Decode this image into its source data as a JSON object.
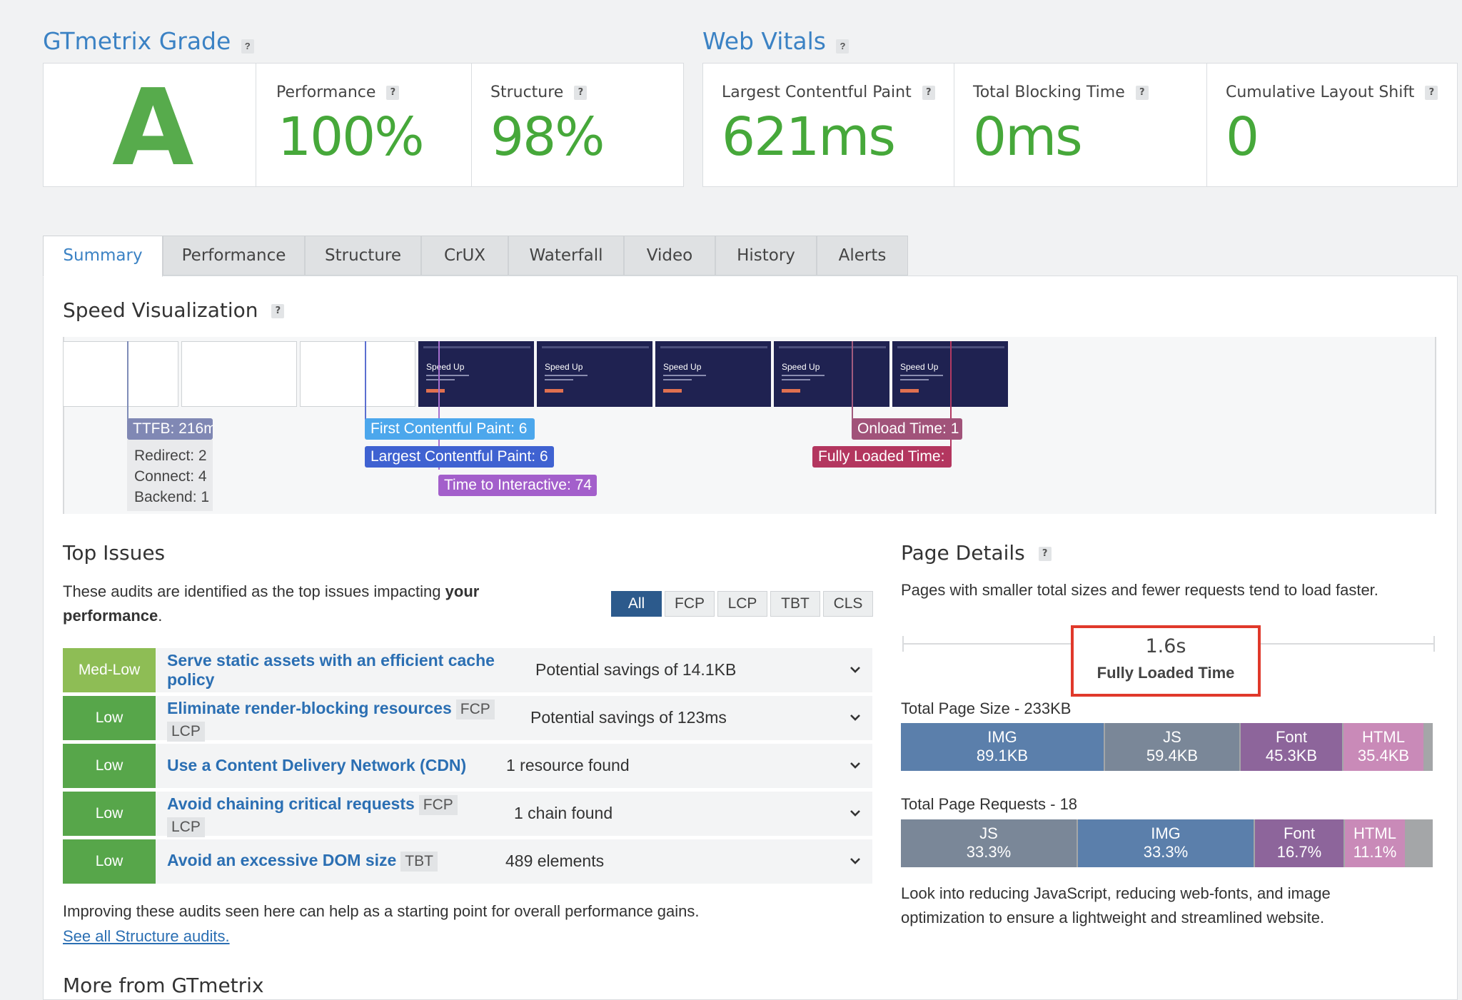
{
  "grade": {
    "title": "GTmetrix Grade",
    "help": "?",
    "letter": "A",
    "performance": {
      "label": "Performance",
      "value": "100%"
    },
    "structure": {
      "label": "Structure",
      "value": "98%"
    }
  },
  "vitals": {
    "title": "Web Vitals",
    "help": "?",
    "lcp": {
      "label": "Largest Contentful Paint",
      "value": "621ms"
    },
    "tbt": {
      "label": "Total Blocking Time",
      "value": "0ms"
    },
    "cls": {
      "label": "Cumulative Layout Shift",
      "value": "0"
    }
  },
  "tabs": [
    "Summary",
    "Performance",
    "Structure",
    "CrUX",
    "Waterfall",
    "Video",
    "History",
    "Alerts"
  ],
  "speed": {
    "title": "Speed Visualization",
    "frame_text": "Speed Up",
    "ttfb": "TTFB: 216m",
    "redirect": "Redirect: 2",
    "connect": "Connect: 4",
    "backend": "Backend: 1",
    "fcp": "First Contentful Paint: 6",
    "lcp": "Largest Contentful Paint: 6",
    "tti": "Time to Interactive: 74",
    "onload": "Onload Time: 1",
    "fully": "Fully Loaded Time:"
  },
  "issues": {
    "title": "Top Issues",
    "desc_pre": "These audits are identified as the top issues impacting ",
    "desc_bold1": "your",
    "desc_bold2": "performance",
    "desc_end": ".",
    "filters": [
      "All",
      "FCP",
      "LCP",
      "TBT",
      "CLS"
    ],
    "rows": [
      {
        "severity": "Med-Low",
        "title_line1": "Serve static assets with an efficient cache",
        "title_line2": "policy",
        "detail": "Potential savings of 14.1KB"
      },
      {
        "severity": "Low",
        "title": "Eliminate render-blocking resources",
        "chip1": "FCP",
        "chip2": "LCP",
        "detail": "Potential savings of 123ms"
      },
      {
        "severity": "Low",
        "title": "Use a Content Delivery Network (CDN)",
        "detail": "1 resource found"
      },
      {
        "severity": "Low",
        "title": "Avoid chaining critical requests",
        "chip1": "FCP",
        "chip2": "LCP",
        "detail": "1 chain found"
      },
      {
        "severity": "Low",
        "title": "Avoid an excessive DOM size",
        "chip1": "TBT",
        "detail": "489 elements"
      }
    ],
    "footer": "Improving these audits seen here can help as a starting point for overall performance gains.",
    "link": "See all Structure audits."
  },
  "page_details": {
    "title": "Page Details",
    "desc": "Pages with smaller total sizes and fewer requests tend to load faster.",
    "fully_value": "1.6s",
    "fully_label": "Fully Loaded Time",
    "size_title": "Total Page Size - 233KB",
    "size_segments": [
      {
        "label": "IMG",
        "value": "89.1KB",
        "color": "#5b7fab"
      },
      {
        "label": "JS",
        "value": "59.4KB",
        "color": "#7a8798"
      },
      {
        "label": "Font",
        "value": "45.3KB",
        "color": "#8d659b"
      },
      {
        "label": "HTML",
        "value": "35.4KB",
        "color": "#c98ab8"
      }
    ],
    "requests_title": "Total Page Requests - 18",
    "request_segments": [
      {
        "label": "JS",
        "value": "33.3%",
        "color": "#7a8798"
      },
      {
        "label": "IMG",
        "value": "33.3%",
        "color": "#5b7fab"
      },
      {
        "label": "Font",
        "value": "16.7%",
        "color": "#8d659b"
      },
      {
        "label": "HTML",
        "value": "11.1%",
        "color": "#c98ab8"
      }
    ],
    "advice_line1": "Look into reducing JavaScript, reducing web-fonts, and image",
    "advice_line2": "optimization to ensure a lightweight and streamlined website."
  },
  "more": {
    "title": "More from GTmetrix"
  },
  "colors": {
    "accent": "#3b82c4",
    "good": "#46a83a",
    "highlight": "#e0392b"
  }
}
